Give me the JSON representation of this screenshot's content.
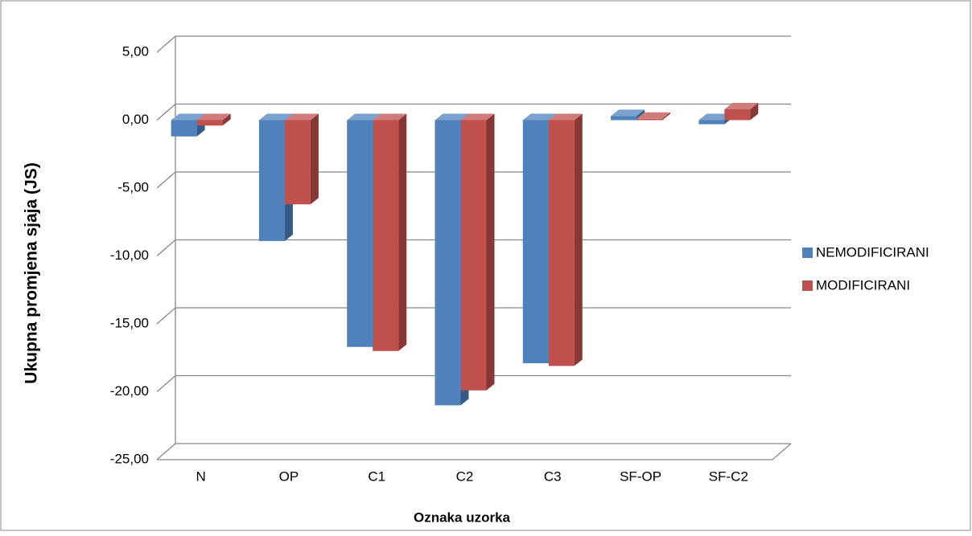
{
  "chart_data": {
    "type": "bar3d",
    "x_label": "Oznaka uzorka",
    "y_label": "Ukupna promjena sjaja (JS)",
    "categories": [
      "N",
      "OP",
      "C1",
      "C2",
      "C3",
      "SF-OP",
      "SF-C2"
    ],
    "series": [
      {
        "name": "NEMODIFICIRANI",
        "color": "#4f81bd",
        "values": [
          -1.2,
          -8.9,
          -16.7,
          -21.0,
          -17.9,
          0.3,
          -0.3
        ]
      },
      {
        "name": "MODIFICIRANI",
        "color": "#c0504d",
        "values": [
          -0.4,
          -6.2,
          -17.0,
          -19.9,
          -18.1,
          0.1,
          0.8
        ]
      }
    ],
    "ylim": [
      -25,
      5
    ],
    "yticks": [
      {
        "value": 5,
        "label": "5,00"
      },
      {
        "value": 0,
        "label": "0,00"
      },
      {
        "value": -5,
        "label": "-5,00"
      },
      {
        "value": -10,
        "label": "-10,00"
      },
      {
        "value": -15,
        "label": "-15,00"
      },
      {
        "value": -20,
        "label": "-20,00"
      },
      {
        "value": -25,
        "label": "-25,00"
      }
    ],
    "grid": true,
    "legend": "right"
  }
}
